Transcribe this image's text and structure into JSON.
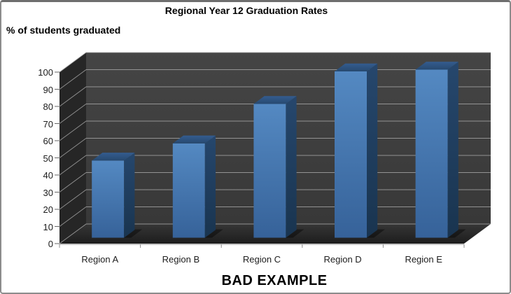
{
  "chart_data": {
    "type": "bar",
    "style": "3d-column",
    "title": "Regional Year 12 Graduation Rates",
    "ylabel": "% of students graduated",
    "xlabel": "",
    "categories": [
      "Region A",
      "Region B",
      "Region C",
      "Region D",
      "Region E"
    ],
    "values": [
      45,
      55,
      78,
      97,
      98
    ],
    "ylim": [
      0,
      100
    ],
    "yticks": [
      0,
      10,
      20,
      30,
      40,
      50,
      60,
      70,
      80,
      90,
      100
    ],
    "grid": true,
    "legend": false,
    "annotation": "BAD EXAMPLE",
    "colors": {
      "bar_front": [
        "#5489c2",
        "#366299"
      ],
      "bar_side": [
        "#26476d",
        "#19344f"
      ],
      "bar_top": [
        "#345c8f",
        "#27496f"
      ],
      "back_wall": [
        "#454545",
        "#383838"
      ],
      "side_wall": "#262626",
      "floor": [
        "#363636",
        "#1d1d1d"
      ],
      "gridline": "#a9a9a9",
      "axis_line": "#8e8e8e",
      "text": "#1c1c1c",
      "frame_border": "#8c8c8c"
    }
  }
}
